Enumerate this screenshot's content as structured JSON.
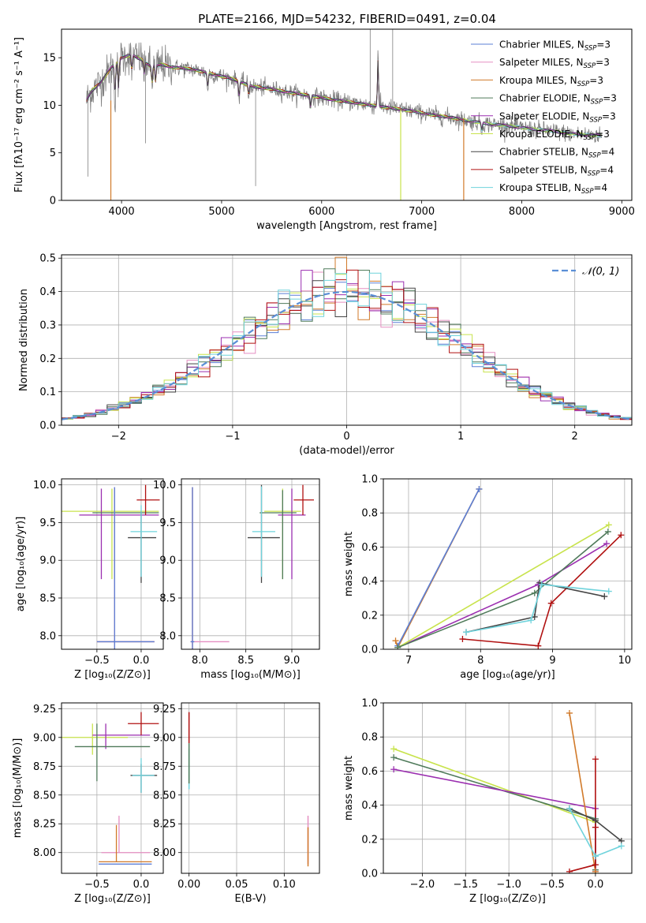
{
  "figure_title": "PLATE=2166, MJD=54232, FIBERID=0491, z=0.04",
  "colors": {
    "chabrier_miles": "#5b7fd6",
    "salpeter_miles": "#e58fc2",
    "kroupa_miles": "#d17a2a",
    "chabrier_elodie": "#4f7a5a",
    "salpeter_elodie": "#9b2fb0",
    "kroupa_elodie": "#c8e34c",
    "chabrier_stelib": "#444444",
    "salpeter_stelib": "#b01010",
    "kroupa_stelib": "#6fd3dc",
    "data": "#808080",
    "gaussian": "#5b8fd6"
  },
  "chart_data": [
    {
      "id": "spectrum",
      "type": "line",
      "xlabel": "wavelength [Angstrom, rest frame]",
      "ylabel": "Flux [fλ10⁻¹⁷ erg cm⁻² s⁻¹ A⁻¹]",
      "xlim": [
        3400,
        9100
      ],
      "ylim": [
        0,
        18
      ],
      "xticks": [
        "4000",
        "5000",
        "6000",
        "7000",
        "8000",
        "9000"
      ],
      "yticks": [
        "0",
        "5",
        "10",
        "15"
      ],
      "grid": false,
      "legend_position": "top-right",
      "legend": [
        {
          "key": "chabrier_miles",
          "label": "Chabrier MILES, N",
          "sub": "SSP",
          "tail": "=3"
        },
        {
          "key": "salpeter_miles",
          "label": "Salpeter MILES, N",
          "sub": "SSP",
          "tail": "=3"
        },
        {
          "key": "kroupa_miles",
          "label": "Kroupa MILES, N",
          "sub": "SSP",
          "tail": "=3"
        },
        {
          "key": "chabrier_elodie",
          "label": "Chabrier ELODIE, N",
          "sub": "SSP",
          "tail": "=3"
        },
        {
          "key": "salpeter_elodie",
          "label": "Salpeter ELODIE, N",
          "sub": "SSP",
          "tail": "=3"
        },
        {
          "key": "kroupa_elodie",
          "label": "Kroupa ELODIE, N",
          "sub": "SSP",
          "tail": "=3"
        },
        {
          "key": "chabrier_stelib",
          "label": "Chabrier STELIB, N",
          "sub": "SSP",
          "tail": "=4"
        },
        {
          "key": "salpeter_stelib",
          "label": "Salpeter STELIB, N",
          "sub": "SSP",
          "tail": "=4"
        },
        {
          "key": "kroupa_stelib",
          "label": "Kroupa STELIB, N",
          "sub": "SSP",
          "tail": "=4"
        }
      ],
      "continuum": [
        [
          3650,
          10.5
        ],
        [
          3700,
          11.5
        ],
        [
          3800,
          12.5
        ],
        [
          3900,
          14.0
        ],
        [
          4000,
          15.0
        ],
        [
          4100,
          15.3
        ],
        [
          4200,
          14.8
        ],
        [
          4300,
          14.0
        ],
        [
          4400,
          14.3
        ],
        [
          4500,
          14.0
        ],
        [
          4700,
          13.8
        ],
        [
          4900,
          13.3
        ],
        [
          5100,
          12.8
        ],
        [
          5300,
          12.0
        ],
        [
          5500,
          11.7
        ],
        [
          5700,
          11.3
        ],
        [
          5900,
          11.0
        ],
        [
          6100,
          10.6
        ],
        [
          6300,
          10.3
        ],
        [
          6500,
          10.0
        ],
        [
          6700,
          9.7
        ],
        [
          6900,
          9.4
        ],
        [
          7100,
          9.0
        ],
        [
          7300,
          8.7
        ],
        [
          7500,
          8.3
        ],
        [
          7700,
          8.0
        ],
        [
          7900,
          7.8
        ],
        [
          8100,
          7.5
        ],
        [
          8300,
          7.3
        ],
        [
          8500,
          7.0
        ],
        [
          8800,
          6.8
        ]
      ]
    },
    {
      "id": "residuals",
      "type": "histogram",
      "xlabel": "(data-model)/error",
      "ylabel": "Normed distribution",
      "xlim": [
        -2.5,
        2.5
      ],
      "ylim": [
        0,
        0.51
      ],
      "xticks": [
        "−2",
        "−1",
        "0",
        "1",
        "2"
      ],
      "yticks": [
        "0.0",
        "0.1",
        "0.2",
        "0.3",
        "0.4",
        "0.5"
      ],
      "grid": true,
      "legend": [
        {
          "key": "gaussian",
          "label": "𝒩(0, 1)"
        }
      ],
      "bin_width": 0.1,
      "bin_start": -2.5
    },
    {
      "id": "age_vs_Z",
      "type": "scatter",
      "xlabel": "Z [log₁₀(Z/Z⊙)]",
      "ylabel": "age  [log₁₀(age/yr)]",
      "xlim": [
        -0.9,
        0.25
      ],
      "ylim": [
        7.82,
        10.08
      ],
      "xticks": [
        -0.5,
        0.0
      ],
      "yticks": [
        8.0,
        8.5,
        9.0,
        9.5,
        10.0
      ],
      "grid": true,
      "points": [
        {
          "key": "kroupa_elodie",
          "x": -0.33,
          "y": 9.65,
          "xerr": [
            0.58,
            0.53
          ],
          "yerr": [
            0.9,
            0.3
          ]
        },
        {
          "key": "salpeter_elodie",
          "x": -0.45,
          "y": 9.6,
          "xerr": [
            0.25,
            0.65
          ],
          "yerr": [
            0.85,
            0.35
          ]
        },
        {
          "key": "chabrier_elodie",
          "x": -0.3,
          "y": 9.63,
          "xerr": [
            0.25,
            0.5
          ],
          "yerr": [
            0.88,
            0.3
          ]
        },
        {
          "key": "chabrier_stelib",
          "x": 0.0,
          "y": 9.3,
          "xerr": [
            0.15,
            0.17
          ],
          "yerr": [
            0.6,
            0.35
          ]
        },
        {
          "key": "kroupa_stelib",
          "x": 0.0,
          "y": 9.38,
          "xerr": [
            0.12,
            0.18
          ],
          "yerr": [
            0.6,
            0.35
          ]
        },
        {
          "key": "salpeter_stelib",
          "x": 0.05,
          "y": 9.8,
          "xerr": [
            0.1,
            0.16
          ],
          "yerr": [
            0.2,
            0.2
          ]
        },
        {
          "key": "kroupa_miles",
          "x": -0.3,
          "y": 7.92,
          "xerr": [
            0.2,
            0.45
          ],
          "yerr": [
            0.1,
            2.05
          ]
        },
        {
          "key": "salpeter_miles",
          "x": -0.3,
          "y": 7.92,
          "xerr": [
            0.2,
            0.45
          ],
          "yerr": [
            0.1,
            2.05
          ]
        },
        {
          "key": "chabrier_miles",
          "x": -0.3,
          "y": 7.92,
          "xerr": [
            0.2,
            0.45
          ],
          "yerr": [
            0.1,
            2.05
          ]
        }
      ]
    },
    {
      "id": "age_vs_mass",
      "type": "scatter",
      "xlabel": "mass [log₁₀(M/M⊙)]",
      "ylabel": "",
      "xlim": [
        7.8,
        9.3
      ],
      "ylim": [
        7.82,
        10.08
      ],
      "xticks": [
        8.0,
        8.5,
        9.0
      ],
      "yticks": [
        8.0,
        8.5,
        9.0,
        9.5,
        10.0
      ],
      "grid": true,
      "points": [
        {
          "key": "kroupa_elodie",
          "x": 8.9,
          "y": 9.65,
          "xerr": [
            0.2,
            0.2
          ],
          "yerr": [
            0.9,
            0.3
          ]
        },
        {
          "key": "salpeter_elodie",
          "x": 9.0,
          "y": 9.6,
          "xerr": [
            0.15,
            0.15
          ],
          "yerr": [
            0.85,
            0.35
          ]
        },
        {
          "key": "chabrier_elodie",
          "x": 8.9,
          "y": 9.63,
          "xerr": [
            0.25,
            0.15
          ],
          "yerr": [
            0.88,
            0.3
          ]
        },
        {
          "key": "chabrier_stelib",
          "x": 8.67,
          "y": 9.3,
          "xerr": [
            0.15,
            0.2
          ],
          "yerr": [
            0.6,
            0.7
          ]
        },
        {
          "key": "kroupa_stelib",
          "x": 8.67,
          "y": 9.38,
          "xerr": [
            0.1,
            0.15
          ],
          "yerr": [
            0.6,
            0.6
          ]
        },
        {
          "key": "salpeter_stelib",
          "x": 9.12,
          "y": 9.8,
          "xerr": [
            0.1,
            0.12
          ],
          "yerr": [
            0.2,
            0.2
          ]
        },
        {
          "key": "kroupa_miles",
          "x": 7.92,
          "y": 7.92,
          "xerr": [
            0.02,
            0.02
          ],
          "yerr": [
            0.1,
            2.05
          ]
        },
        {
          "key": "salpeter_miles",
          "x": 7.92,
          "y": 7.92,
          "xerr": [
            0.02,
            0.4
          ],
          "yerr": [
            0.1,
            2.05
          ]
        },
        {
          "key": "chabrier_miles",
          "x": 7.92,
          "y": 7.92,
          "xerr": [
            0.02,
            0.02
          ],
          "yerr": [
            0.1,
            2.05
          ]
        }
      ]
    },
    {
      "id": "weight_vs_age",
      "type": "line",
      "xlabel": "age  [log₁₀(age/yr)]",
      "ylabel": "mass weight",
      "xlim": [
        6.65,
        10.1
      ],
      "ylim": [
        0,
        1
      ],
      "xticks": [
        7,
        8,
        9,
        10
      ],
      "yticks": [
        0.0,
        0.2,
        0.4,
        0.6,
        0.8,
        1.0
      ],
      "grid": true,
      "series": [
        {
          "key": "kroupa_miles",
          "x": [
            6.82,
            6.85,
            7.98
          ],
          "y": [
            0.05,
            0.01,
            0.94
          ]
        },
        {
          "key": "chabrier_miles",
          "x": [
            6.85,
            7.98
          ],
          "y": [
            0.02,
            0.94
          ]
        },
        {
          "key": "salpeter_stelib",
          "x": [
            7.75,
            8.8,
            8.98,
            9.95
          ],
          "y": [
            0.06,
            0.02,
            0.27,
            0.67
          ]
        },
        {
          "key": "salpeter_elodie",
          "x": [
            6.85,
            8.8,
            9.75
          ],
          "y": [
            0.01,
            0.38,
            0.62
          ]
        },
        {
          "key": "kroupa_elodie",
          "x": [
            6.85,
            9.78
          ],
          "y": [
            0.01,
            0.73
          ]
        },
        {
          "key": "chabrier_elodie",
          "x": [
            6.85,
            8.75,
            9.77
          ],
          "y": [
            0.01,
            0.33,
            0.69
          ]
        },
        {
          "key": "chabrier_stelib",
          "x": [
            7.8,
            8.75,
            8.82,
            9.72
          ],
          "y": [
            0.1,
            0.19,
            0.39,
            0.31
          ]
        },
        {
          "key": "kroupa_stelib",
          "x": [
            7.8,
            8.7,
            8.85,
            9.78
          ],
          "y": [
            0.1,
            0.17,
            0.38,
            0.34
          ]
        }
      ]
    },
    {
      "id": "mass_vs_Z",
      "type": "scatter",
      "xlabel": "Z [log₁₀(Z/Z⊙)]",
      "ylabel": "mass [log₁₀(M/M⊙)]",
      "xlim": [
        -0.9,
        0.25
      ],
      "ylim": [
        7.82,
        9.3
      ],
      "xticks": [
        -0.5,
        0.0
      ],
      "yticks": [
        8.0,
        8.25,
        8.5,
        8.75,
        9.0,
        9.25
      ],
      "grid": true,
      "points": [
        {
          "key": "kroupa_elodie",
          "x": -0.55,
          "y": 9.0,
          "xerr": [
            0.35,
            0.4
          ],
          "yerr": [
            0.15,
            0.12
          ]
        },
        {
          "key": "salpeter_elodie",
          "x": -0.4,
          "y": 9.02,
          "xerr": [
            0.15,
            0.5
          ],
          "yerr": [
            0.12,
            0.1
          ]
        },
        {
          "key": "chabrier_elodie",
          "x": -0.5,
          "y": 8.92,
          "xerr": [
            0.25,
            0.6
          ],
          "yerr": [
            0.3,
            0.2
          ]
        },
        {
          "key": "chabrier_stelib",
          "x": 0.0,
          "y": 8.67,
          "xerr": [
            0.12,
            0.18
          ],
          "yerr": [
            0.15,
            0.1
          ]
        },
        {
          "key": "kroupa_stelib",
          "x": 0.0,
          "y": 8.67,
          "xerr": [
            0.1,
            0.15
          ],
          "yerr": [
            0.15,
            0.15
          ]
        },
        {
          "key": "salpeter_stelib",
          "x": 0.0,
          "y": 9.12,
          "xerr": [
            0.15,
            0.2
          ],
          "yerr": [
            0.1,
            0.1
          ]
        },
        {
          "key": "salpeter_miles",
          "x": -0.25,
          "y": 8.0,
          "xerr": [
            0.2,
            0.35
          ],
          "yerr": [
            0.0,
            0.32
          ]
        },
        {
          "key": "kroupa_miles",
          "x": -0.28,
          "y": 7.92,
          "xerr": [
            0.2,
            0.4
          ],
          "yerr": [
            0.0,
            0.32
          ]
        },
        {
          "key": "chabrier_miles",
          "x": -0.28,
          "y": 7.9,
          "xerr": [
            0.2,
            0.4
          ],
          "yerr": [
            0.0,
            0.0
          ]
        }
      ]
    },
    {
      "id": "mass_vs_ebv",
      "type": "scatter",
      "xlabel": "E(B-V)",
      "ylabel": "",
      "xlim": [
        -0.008,
        0.137
      ],
      "ylim": [
        7.82,
        9.3
      ],
      "xticks": [
        "0.00",
        "0.05",
        "0.10"
      ],
      "yticks": [
        8.0,
        8.25,
        8.5,
        8.75,
        9.0,
        9.25
      ],
      "grid": true,
      "vlines": [
        {
          "key": "salpeter_stelib",
          "x": 0.0,
          "y": [
            8.95,
            9.22
          ]
        },
        {
          "key": "kroupa_stelib",
          "x": 0.0,
          "y": [
            8.55,
            8.9
          ]
        },
        {
          "key": "chabrier_elodie",
          "x": 0.0,
          "y": [
            8.6,
            8.95
          ]
        },
        {
          "key": "salpeter_miles",
          "x": 0.125,
          "y": [
            7.9,
            8.32
          ]
        },
        {
          "key": "kroupa_miles",
          "x": 0.125,
          "y": [
            7.88,
            8.22
          ]
        }
      ]
    },
    {
      "id": "weight_vs_Z",
      "type": "line",
      "xlabel": "Z [log₁₀(Z/Z⊙)]",
      "ylabel": "mass weight",
      "xlim": [
        -2.45,
        0.42
      ],
      "ylim": [
        0,
        1
      ],
      "xticks": [
        -2.0,
        -1.5,
        -1.0,
        -0.5,
        0.0
      ],
      "yticks": [
        0.0,
        0.2,
        0.4,
        0.6,
        0.8,
        1.0
      ],
      "grid": true,
      "series": [
        {
          "key": "kroupa_elodie",
          "x": [
            -2.33,
            0.0,
            0.0
          ],
          "y": [
            0.73,
            0.3,
            0.0
          ]
        },
        {
          "key": "chabrier_elodie",
          "x": [
            -2.33,
            0.0,
            0.0
          ],
          "y": [
            0.68,
            0.32,
            0.02
          ]
        },
        {
          "key": "salpeter_elodie",
          "x": [
            -2.33,
            0.0,
            0.0
          ],
          "y": [
            0.61,
            0.38,
            0.01
          ]
        },
        {
          "key": "kroupa_miles",
          "x": [
            -0.3,
            0.0
          ],
          "y": [
            0.94,
            0.01
          ]
        },
        {
          "key": "salpeter_stelib",
          "x": [
            -0.3,
            0.0,
            0.0,
            0.0
          ],
          "y": [
            0.01,
            0.05,
            0.27,
            0.67
          ]
        },
        {
          "key": "chabrier_stelib",
          "x": [
            -0.3,
            0.0,
            0.3
          ],
          "y": [
            0.38,
            0.31,
            0.19
          ]
        },
        {
          "key": "kroupa_stelib",
          "x": [
            -0.3,
            0.0,
            0.3
          ],
          "y": [
            0.38,
            0.1,
            0.16
          ]
        }
      ]
    }
  ]
}
